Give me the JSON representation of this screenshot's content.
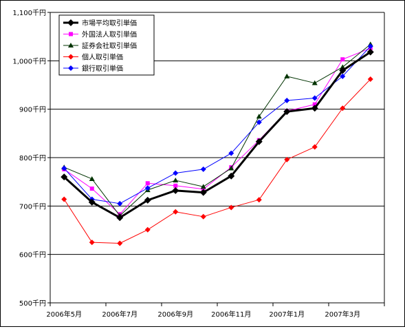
{
  "chart_data": {
    "type": "line",
    "title": "",
    "xlabel": "",
    "ylabel": "",
    "ylim": [
      500,
      1100
    ],
    "y_ticks": [
      500,
      600,
      700,
      800,
      900,
      1000,
      1100
    ],
    "y_tick_labels": [
      "500千円",
      "600千円",
      "700千円",
      "800千円",
      "900千円",
      "1,000千円",
      "1,100千円"
    ],
    "x_tick_labels": [
      "2006年5月",
      "2006年7月",
      "2006年9月",
      "2006年11月",
      "2007年1月",
      "2007年3月"
    ],
    "x_categories": [
      "2006年5月",
      "2006年6月",
      "2006年7月",
      "2006年8月",
      "2006年9月",
      "2006年10月",
      "2006年11月",
      "2006年12月",
      "2007年1月",
      "2007年2月",
      "2007年3月",
      "2007年4月"
    ],
    "grid": true,
    "legend_position": "top-left",
    "series": [
      {
        "name": "市場平均取引単価",
        "color": "#000000",
        "marker": "diamond",
        "line_width": 3,
        "values": [
          760,
          708,
          676,
          712,
          732,
          728,
          762,
          833,
          895,
          902,
          980,
          1018
        ]
      },
      {
        "name": "外国法人取引単価",
        "color": "#ff00ff",
        "marker": "square",
        "line_width": 1,
        "values": [
          776,
          736,
          683,
          747,
          742,
          735,
          780,
          836,
          896,
          910,
          1003,
          1026
        ]
      },
      {
        "name": "証券会社取引単価",
        "color": "#003300",
        "marker": "triangle",
        "line_width": 1,
        "values": [
          780,
          756,
          680,
          733,
          753,
          740,
          778,
          885,
          968,
          954,
          987,
          1034
        ]
      },
      {
        "name": "個人取引単価",
        "color": "#ff0000",
        "marker": "diamond",
        "line_width": 1,
        "values": [
          714,
          625,
          623,
          651,
          688,
          678,
          697,
          713,
          796,
          822,
          902,
          962
        ]
      },
      {
        "name": "銀行取引単価",
        "color": "#0000ff",
        "marker": "diamond",
        "line_width": 1,
        "values": [
          778,
          714,
          705,
          737,
          768,
          776,
          809,
          873,
          918,
          923,
          968,
          1030
        ]
      }
    ]
  }
}
